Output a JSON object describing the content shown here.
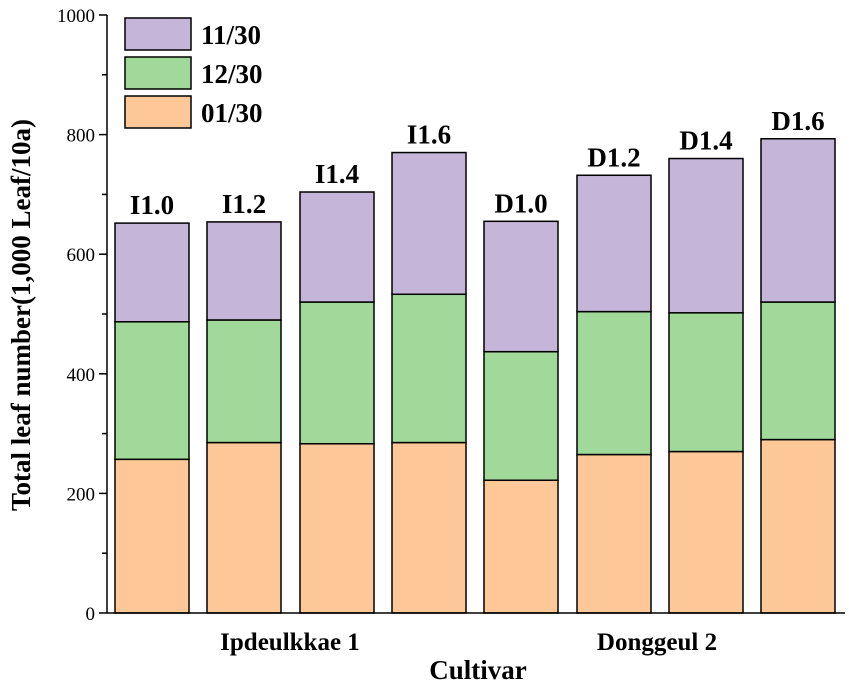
{
  "chart_data": {
    "type": "bar",
    "stacked": true,
    "categories": [
      "I1.0",
      "I1.2",
      "I1.4",
      "I1.6",
      "D1.0",
      "D1.2",
      "D1.4",
      "D1.6"
    ],
    "groups": [
      {
        "label": "Ipdeulkkae 1",
        "categories": [
          "I1.0",
          "I1.2",
          "I1.4",
          "I1.6"
        ]
      },
      {
        "label": "Donggeul 2",
        "categories": [
          "D1.0",
          "D1.2",
          "D1.4",
          "D1.6"
        ]
      }
    ],
    "series": [
      {
        "name": "01/30",
        "color": "#fdc797",
        "values": [
          257,
          285,
          283,
          285,
          222,
          265,
          270,
          290
        ]
      },
      {
        "name": "12/30",
        "color": "#a1d99b",
        "values": [
          230,
          205,
          237,
          248,
          215,
          239,
          232,
          230
        ]
      },
      {
        "name": "11/30",
        "color": "#c4b5d9",
        "values": [
          165,
          164,
          184,
          237,
          218,
          228,
          258,
          273
        ]
      }
    ],
    "legend_order": [
      "11/30",
      "12/30",
      "01/30"
    ],
    "legend_position": "top-left",
    "xlabel": "Cultivar",
    "ylabel": "Total leaf number(1,000 Leaf/10a)",
    "ylim": [
      0,
      1000
    ],
    "yticks": [
      0,
      200,
      400,
      600,
      800,
      1000
    ],
    "grid": false
  }
}
